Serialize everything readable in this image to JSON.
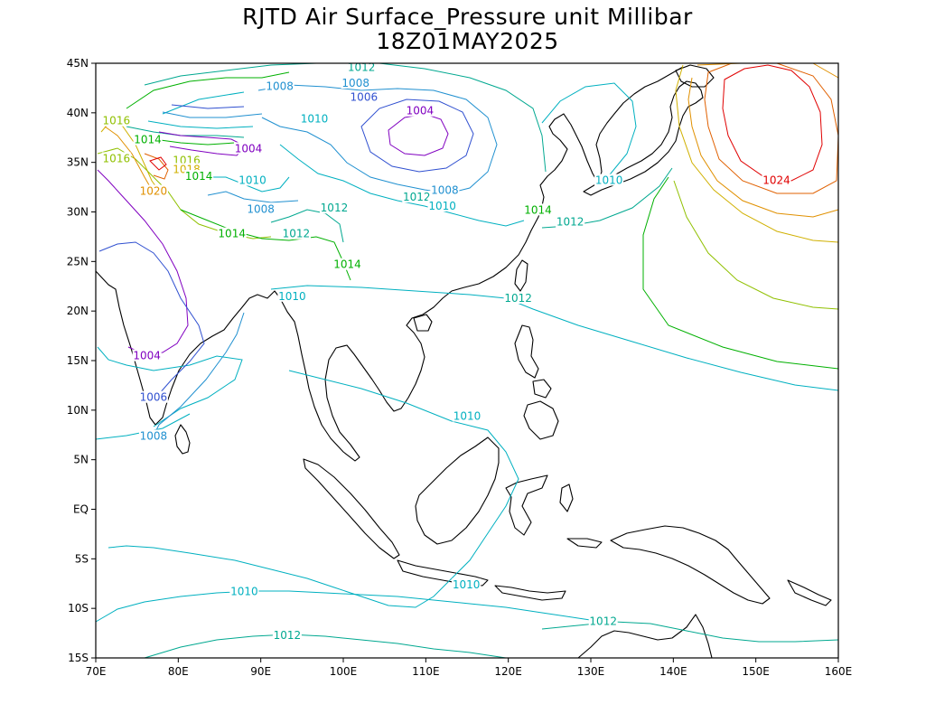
{
  "title": "RJTD Air Surface_Pressure unit Millibar",
  "subtitle": "18Z01MAY2025",
  "map": {
    "lon_range": [
      70,
      160
    ],
    "lat_range": [
      -15,
      45
    ],
    "x_ticks": [
      {
        "lon": 70,
        "label": "70E"
      },
      {
        "lon": 80,
        "label": "80E"
      },
      {
        "lon": 90,
        "label": "90E"
      },
      {
        "lon": 100,
        "label": "100E"
      },
      {
        "lon": 110,
        "label": "110E"
      },
      {
        "lon": 120,
        "label": "120E"
      },
      {
        "lon": 130,
        "label": "130E"
      },
      {
        "lon": 140,
        "label": "140E"
      },
      {
        "lon": 150,
        "label": "150E"
      },
      {
        "lon": 160,
        "label": "160E"
      }
    ],
    "y_ticks": [
      {
        "lat": 45,
        "label": "45N"
      },
      {
        "lat": 40,
        "label": "40N"
      },
      {
        "lat": 35,
        "label": "35N"
      },
      {
        "lat": 30,
        "label": "30N"
      },
      {
        "lat": 25,
        "label": "25N"
      },
      {
        "lat": 20,
        "label": "20N"
      },
      {
        "lat": 15,
        "label": "15N"
      },
      {
        "lat": 10,
        "label": "10N"
      },
      {
        "lat": 5,
        "label": "5N"
      },
      {
        "lat": 0,
        "label": "EQ"
      },
      {
        "lat": -5,
        "label": "5S"
      },
      {
        "lat": -10,
        "label": "10S"
      },
      {
        "lat": -15,
        "label": "15S"
      }
    ],
    "level_colors": {
      "1004": "#8000c0",
      "1006": "#3050d0",
      "1008": "#2090d0",
      "1010": "#00b0c0",
      "1012": "#00a890",
      "1014": "#00b000",
      "1016": "#90c000",
      "1018": "#d0b000",
      "1020": "#e09000",
      "1022": "#e06000",
      "1024": "#e00000"
    },
    "contour_labels": [
      {
        "text": "1016",
        "lon": 72.5,
        "lat": 39.1,
        "level": "1016"
      },
      {
        "text": "1014",
        "lon": 76.3,
        "lat": 37.2,
        "level": "1014"
      },
      {
        "text": "1012",
        "lon": 102.2,
        "lat": 44.5,
        "level": "1012"
      },
      {
        "text": "1008",
        "lon": 92.3,
        "lat": 42.6,
        "level": "1008"
      },
      {
        "text": "1008",
        "lon": 101.5,
        "lat": 42.9,
        "level": "1008"
      },
      {
        "text": "1006",
        "lon": 102.5,
        "lat": 41.5,
        "level": "1006"
      },
      {
        "text": "1004",
        "lon": 109.3,
        "lat": 40.1,
        "level": "1004"
      },
      {
        "text": "1010",
        "lon": 96.5,
        "lat": 39.3,
        "level": "1010"
      },
      {
        "text": "1004",
        "lon": 88.5,
        "lat": 36.3,
        "level": "1004"
      },
      {
        "text": "1016",
        "lon": 72.5,
        "lat": 35.3,
        "level": "1016"
      },
      {
        "text": "1016",
        "lon": 81.0,
        "lat": 35.1,
        "level": "1016"
      },
      {
        "text": "1018",
        "lon": 81.0,
        "lat": 34.2,
        "level": "1018"
      },
      {
        "text": "1014",
        "lon": 82.5,
        "lat": 33.5,
        "level": "1014"
      },
      {
        "text": "1010",
        "lon": 89.0,
        "lat": 33.1,
        "level": "1010"
      },
      {
        "text": "1020",
        "lon": 77.0,
        "lat": 32.0,
        "level": "1020"
      },
      {
        "text": "1008",
        "lon": 90.0,
        "lat": 30.2,
        "level": "1008"
      },
      {
        "text": "1012",
        "lon": 98.9,
        "lat": 30.3,
        "level": "1012"
      },
      {
        "text": "1012",
        "lon": 108.9,
        "lat": 31.4,
        "level": "1012"
      },
      {
        "text": "1008",
        "lon": 112.3,
        "lat": 32.1,
        "level": "1008"
      },
      {
        "text": "1010",
        "lon": 112.0,
        "lat": 30.5,
        "level": "1010"
      },
      {
        "text": "1010",
        "lon": 132.2,
        "lat": 33.1,
        "level": "1010"
      },
      {
        "text": "1014",
        "lon": 123.6,
        "lat": 30.1,
        "level": "1014"
      },
      {
        "text": "1012",
        "lon": 127.5,
        "lat": 28.9,
        "level": "1012"
      },
      {
        "text": "1024",
        "lon": 152.5,
        "lat": 33.1,
        "level": "1024"
      },
      {
        "text": "1014",
        "lon": 86.5,
        "lat": 27.7,
        "level": "1014"
      },
      {
        "text": "1012",
        "lon": 94.3,
        "lat": 27.7,
        "level": "1012"
      },
      {
        "text": "1014",
        "lon": 100.5,
        "lat": 24.6,
        "level": "1014"
      },
      {
        "text": "1010",
        "lon": 93.8,
        "lat": 21.4,
        "level": "1010"
      },
      {
        "text": "1012",
        "lon": 121.2,
        "lat": 21.2,
        "level": "1012"
      },
      {
        "text": "1004",
        "lon": 76.2,
        "lat": 15.4,
        "level": "1004"
      },
      {
        "text": "1006",
        "lon": 77.0,
        "lat": 11.2,
        "level": "1006"
      },
      {
        "text": "1010",
        "lon": 115.0,
        "lat": 9.3,
        "level": "1010"
      },
      {
        "text": "1008",
        "lon": 77.0,
        "lat": 7.3,
        "level": "1008"
      },
      {
        "text": "1010",
        "lon": 88.0,
        "lat": -8.4,
        "level": "1010"
      },
      {
        "text": "1010",
        "lon": 114.9,
        "lat": -7.7,
        "level": "1010"
      },
      {
        "text": "1012",
        "lon": 131.5,
        "lat": -11.4,
        "level": "1012"
      },
      {
        "text": "1012",
        "lon": 93.2,
        "lat": -12.8,
        "level": "1012"
      }
    ]
  }
}
